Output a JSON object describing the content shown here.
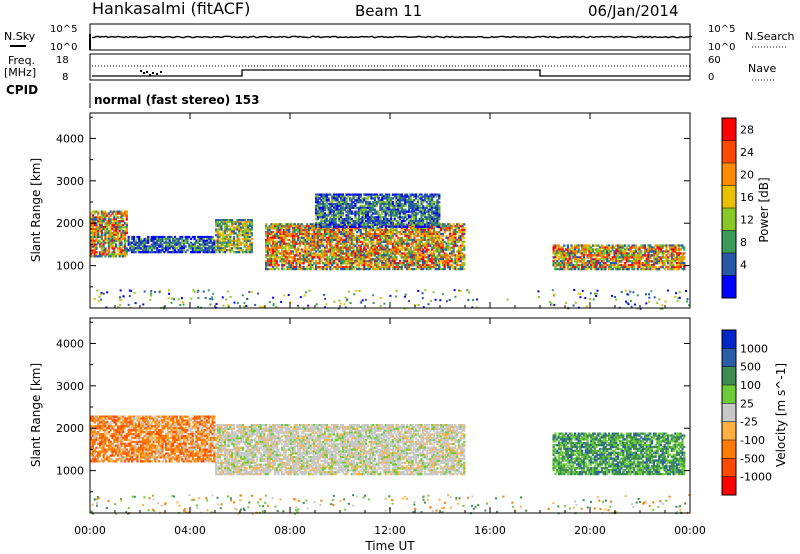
{
  "header": {
    "station": "Hankasalmi (fitACF)",
    "beam": "Beam 11",
    "date": "06/Jan/2014"
  },
  "noise_panel": {
    "left_label": "N.Sky",
    "right_label": "N.Search",
    "left_ticks": [
      "10^5",
      "10^0"
    ],
    "right_ticks": [
      "10^5",
      "10^0"
    ]
  },
  "freq_panel": {
    "left_label_line1": "Freq.",
    "left_label_line2": "[MHz]",
    "right_label": "Nave",
    "left_ticks": [
      "18",
      "8"
    ],
    "right_ticks": [
      "60",
      "0"
    ]
  },
  "cpid": {
    "label": "CPID",
    "text": "normal (fast stereo) 153"
  },
  "x_axis": {
    "title": "Time UT",
    "ticks": [
      "00:00",
      "04:00",
      "08:00",
      "12:00",
      "16:00",
      "20:00",
      "00:00"
    ]
  },
  "chart_data": [
    {
      "type": "heatmap",
      "quantity": "Power",
      "ylabel": "Slant Range [km]",
      "yticks": [
        1000,
        2000,
        3000,
        4000
      ],
      "ylim": [
        0,
        4600
      ],
      "xlim_hours": [
        0,
        24
      ],
      "colorbar": {
        "title": "Power [dB]",
        "ticks": [
          "28",
          "24",
          "20",
          "16",
          "12",
          "8",
          "4"
        ],
        "colors": [
          "#ff0000",
          "#ff4a00",
          "#ff8c00",
          "#e8c000",
          "#88c828",
          "#3c9a58",
          "#2858a8",
          "#0000ff"
        ]
      },
      "echo_regions": [
        {
          "t0": 0.0,
          "t1": 1.5,
          "r0": 1200,
          "r1": 2300,
          "level": "high"
        },
        {
          "t0": 1.5,
          "t1": 5.0,
          "r0": 1300,
          "r1": 1700,
          "level": "low"
        },
        {
          "t0": 5.0,
          "t1": 6.5,
          "r0": 1300,
          "r1": 2100,
          "level": "medium"
        },
        {
          "t0": 7.0,
          "t1": 15.0,
          "r0": 900,
          "r1": 2000,
          "level": "high"
        },
        {
          "t0": 9.0,
          "t1": 14.0,
          "r0": 1900,
          "r1": 2700,
          "level": "low"
        },
        {
          "t0": 18.5,
          "t1": 23.8,
          "r0": 900,
          "r1": 1500,
          "level": "high"
        }
      ]
    },
    {
      "type": "heatmap",
      "quantity": "Velocity",
      "ylabel": "Slant Range [km]",
      "yticks": [
        1000,
        2000,
        3000,
        4000
      ],
      "ylim": [
        0,
        4600
      ],
      "xlim_hours": [
        0,
        24
      ],
      "colorbar": {
        "title": "Velocity [m s^-1]",
        "ticks": [
          "1000",
          "500",
          "100",
          "25",
          "-25",
          "-100",
          "-500",
          "-1000"
        ],
        "colors": [
          "#0028c8",
          "#2a5ea8",
          "#3c8c50",
          "#6ccc3a",
          "#c8c8c8",
          "#ffb040",
          "#ff7a00",
          "#ff4a00",
          "#ff0000"
        ]
      },
      "echo_regions": [
        {
          "t0": 0.0,
          "t1": 5.0,
          "r0": 1200,
          "r1": 2300,
          "sign": "negative"
        },
        {
          "t0": 5.0,
          "t1": 15.0,
          "r0": 900,
          "r1": 2100,
          "sign": "zero"
        },
        {
          "t0": 18.5,
          "t1": 23.8,
          "r0": 900,
          "r1": 1900,
          "sign": "positive"
        }
      ]
    }
  ]
}
